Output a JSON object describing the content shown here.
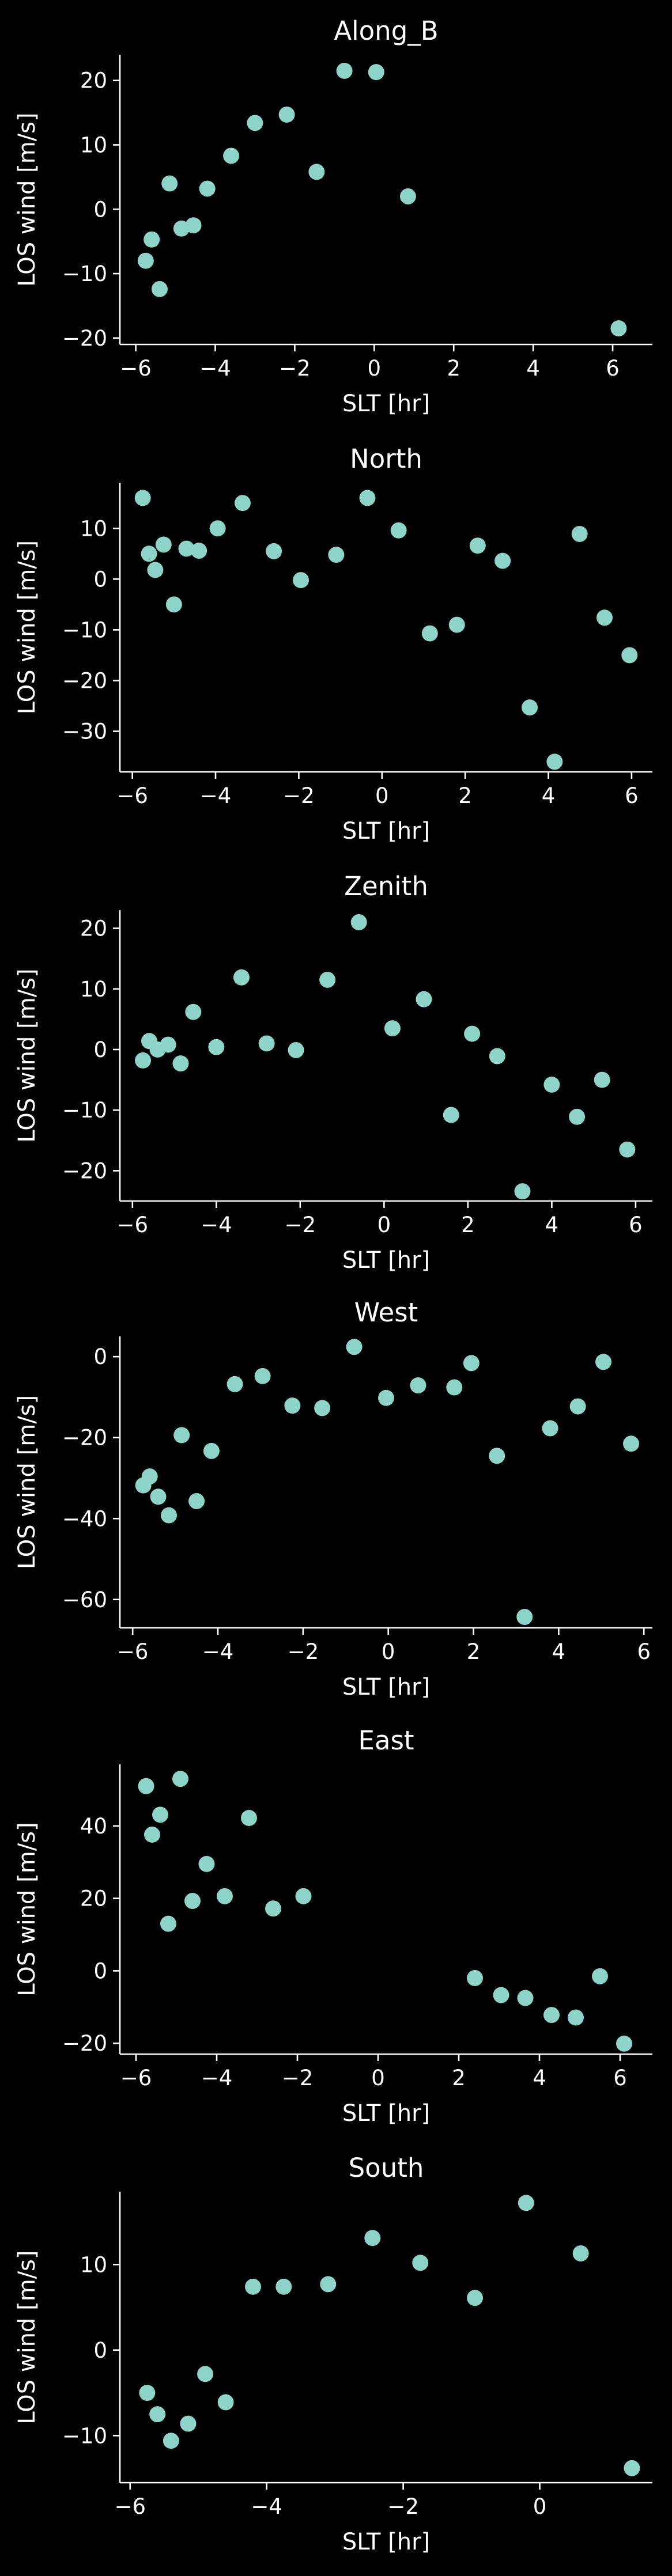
{
  "figure": {
    "background": "#000000",
    "foreground": "#ffffff",
    "marker_color": "#8dd3c7"
  },
  "chart_data": [
    {
      "type": "scatter",
      "title": "Along_B",
      "xlabel": "SLT [hr]",
      "ylabel": "LOS wind [m/s]",
      "xlim": [
        -6.4,
        7.0
      ],
      "ylim": [
        -21,
        24
      ],
      "xticks": [
        -6,
        -4,
        -2,
        0,
        2,
        4,
        6
      ],
      "yticks": [
        -20,
        -10,
        0,
        10,
        20
      ],
      "grid": false,
      "points": [
        {
          "x": -5.75,
          "y": -8.0
        },
        {
          "x": -5.6,
          "y": -4.7
        },
        {
          "x": -5.4,
          "y": -12.4
        },
        {
          "x": -5.15,
          "y": 4.0
        },
        {
          "x": -4.85,
          "y": -3.0
        },
        {
          "x": -4.55,
          "y": -2.5
        },
        {
          "x": -4.2,
          "y": 3.2
        },
        {
          "x": -3.6,
          "y": 8.3
        },
        {
          "x": -3.0,
          "y": 13.4
        },
        {
          "x": -2.2,
          "y": 14.7
        },
        {
          "x": -1.45,
          "y": 5.8
        },
        {
          "x": -0.75,
          "y": 21.5
        },
        {
          "x": 0.05,
          "y": 21.3
        },
        {
          "x": 0.85,
          "y": 2.0
        },
        {
          "x": 6.15,
          "y": -18.5
        }
      ]
    },
    {
      "type": "scatter",
      "title": "North",
      "xlabel": "SLT [hr]",
      "ylabel": "LOS wind [m/s]",
      "xlim": [
        -6.3,
        6.5
      ],
      "ylim": [
        -38,
        19
      ],
      "xticks": [
        -6,
        -4,
        -2,
        0,
        2,
        4,
        6
      ],
      "yticks": [
        -30,
        -20,
        -10,
        0,
        10
      ],
      "grid": false,
      "points": [
        {
          "x": -5.75,
          "y": 16.0
        },
        {
          "x": -5.6,
          "y": 5.0
        },
        {
          "x": -5.45,
          "y": 1.8
        },
        {
          "x": -5.25,
          "y": 6.8
        },
        {
          "x": -5.0,
          "y": -5.0
        },
        {
          "x": -4.7,
          "y": 6.0
        },
        {
          "x": -4.4,
          "y": 5.6
        },
        {
          "x": -3.95,
          "y": 10.0
        },
        {
          "x": -3.35,
          "y": 15.0
        },
        {
          "x": -2.6,
          "y": 5.5
        },
        {
          "x": -1.95,
          "y": -0.2
        },
        {
          "x": -1.1,
          "y": 4.8
        },
        {
          "x": -0.35,
          "y": 16.0
        },
        {
          "x": 0.4,
          "y": 9.6
        },
        {
          "x": 1.15,
          "y": -10.7
        },
        {
          "x": 1.8,
          "y": -9.0
        },
        {
          "x": 2.3,
          "y": 6.6
        },
        {
          "x": 2.9,
          "y": 3.6
        },
        {
          "x": 3.55,
          "y": -25.3
        },
        {
          "x": 4.15,
          "y": -36.0
        },
        {
          "x": 4.75,
          "y": 8.9
        },
        {
          "x": 5.35,
          "y": -7.6
        },
        {
          "x": 5.95,
          "y": -15.0
        }
      ]
    },
    {
      "type": "scatter",
      "title": "Zenith",
      "xlabel": "SLT [hr]",
      "ylabel": "LOS wind [m/s]",
      "xlim": [
        -6.3,
        6.4
      ],
      "ylim": [
        -25,
        23
      ],
      "xticks": [
        -6,
        -4,
        -2,
        0,
        2,
        4,
        6
      ],
      "yticks": [
        -20,
        -10,
        0,
        10,
        20
      ],
      "grid": false,
      "points": [
        {
          "x": -5.75,
          "y": -1.8
        },
        {
          "x": -5.6,
          "y": 1.4
        },
        {
          "x": -5.4,
          "y": 0.0
        },
        {
          "x": -5.15,
          "y": 0.8
        },
        {
          "x": -4.85,
          "y": -2.3
        },
        {
          "x": -4.55,
          "y": 6.2
        },
        {
          "x": -4.0,
          "y": 0.4
        },
        {
          "x": -3.4,
          "y": 11.9
        },
        {
          "x": -2.8,
          "y": 1.0
        },
        {
          "x": -2.1,
          "y": -0.1
        },
        {
          "x": -1.35,
          "y": 11.5
        },
        {
          "x": -0.6,
          "y": 21.0
        },
        {
          "x": 0.2,
          "y": 3.5
        },
        {
          "x": 0.95,
          "y": 8.3
        },
        {
          "x": 1.6,
          "y": -10.8
        },
        {
          "x": 2.1,
          "y": 2.6
        },
        {
          "x": 2.7,
          "y": -1.1
        },
        {
          "x": 3.3,
          "y": -23.4
        },
        {
          "x": 4.0,
          "y": -5.8
        },
        {
          "x": 4.6,
          "y": -11.1
        },
        {
          "x": 5.2,
          "y": -5.0
        },
        {
          "x": 5.8,
          "y": -16.5
        }
      ]
    },
    {
      "type": "scatter",
      "title": "West",
      "xlabel": "SLT [hr]",
      "ylabel": "LOS wind [m/s]",
      "xlim": [
        -6.3,
        6.2
      ],
      "ylim": [
        -67,
        5
      ],
      "xticks": [
        -6,
        -4,
        -2,
        0,
        2,
        4,
        6
      ],
      "yticks": [
        -60,
        -40,
        -20,
        0
      ],
      "grid": false,
      "points": [
        {
          "x": -5.75,
          "y": -31.8
        },
        {
          "x": -5.6,
          "y": -29.6
        },
        {
          "x": -5.4,
          "y": -34.6
        },
        {
          "x": -5.15,
          "y": -39.2
        },
        {
          "x": -4.85,
          "y": -19.4
        },
        {
          "x": -4.5,
          "y": -35.7
        },
        {
          "x": -4.15,
          "y": -23.3
        },
        {
          "x": -3.6,
          "y": -6.8
        },
        {
          "x": -2.95,
          "y": -4.8
        },
        {
          "x": -2.25,
          "y": -12.1
        },
        {
          "x": -1.55,
          "y": -12.7
        },
        {
          "x": -0.8,
          "y": 2.4
        },
        {
          "x": -0.05,
          "y": -10.2
        },
        {
          "x": 0.7,
          "y": -7.1
        },
        {
          "x": 1.55,
          "y": -7.6
        },
        {
          "x": 1.95,
          "y": -1.6
        },
        {
          "x": 2.55,
          "y": -24.5
        },
        {
          "x": 3.2,
          "y": -64.3
        },
        {
          "x": 3.8,
          "y": -17.7
        },
        {
          "x": 4.45,
          "y": -12.3
        },
        {
          "x": 5.05,
          "y": -1.3
        },
        {
          "x": 5.7,
          "y": -21.5
        }
      ]
    },
    {
      "type": "scatter",
      "title": "East",
      "xlabel": "SLT [hr]",
      "ylabel": "LOS wind [m/s]",
      "xlim": [
        -6.4,
        6.8
      ],
      "ylim": [
        -23,
        57
      ],
      "xticks": [
        -6,
        -4,
        -2,
        0,
        2,
        4,
        6
      ],
      "yticks": [
        -20,
        0,
        20,
        40
      ],
      "grid": false,
      "points": [
        {
          "x": -5.75,
          "y": 51.0
        },
        {
          "x": -5.6,
          "y": 37.6
        },
        {
          "x": -5.4,
          "y": 43.1
        },
        {
          "x": -5.2,
          "y": 13.0
        },
        {
          "x": -4.9,
          "y": 53.0
        },
        {
          "x": -4.6,
          "y": 19.3
        },
        {
          "x": -4.25,
          "y": 29.5
        },
        {
          "x": -3.8,
          "y": 20.6
        },
        {
          "x": -3.2,
          "y": 42.2
        },
        {
          "x": -2.6,
          "y": 17.2
        },
        {
          "x": -1.85,
          "y": 20.6
        },
        {
          "x": 2.4,
          "y": -2.0
        },
        {
          "x": 3.05,
          "y": -6.7
        },
        {
          "x": 3.65,
          "y": -7.5
        },
        {
          "x": 4.3,
          "y": -12.2
        },
        {
          "x": 4.9,
          "y": -12.9
        },
        {
          "x": 5.5,
          "y": -1.5
        },
        {
          "x": 6.1,
          "y": -20.1
        }
      ]
    },
    {
      "type": "scatter",
      "title": "South",
      "xlabel": "SLT [hr]",
      "ylabel": "LOS wind [m/s]",
      "xlim": [
        -6.15,
        1.65
      ],
      "ylim": [
        -15.5,
        18.5
      ],
      "xticks": [
        -6,
        -4,
        -2,
        0
      ],
      "yticks": [
        -10,
        0,
        10
      ],
      "grid": false,
      "points": [
        {
          "x": -5.75,
          "y": -5.0
        },
        {
          "x": -5.6,
          "y": -7.5
        },
        {
          "x": -5.4,
          "y": -10.6
        },
        {
          "x": -5.15,
          "y": -8.6
        },
        {
          "x": -4.9,
          "y": -2.8
        },
        {
          "x": -4.6,
          "y": -6.1
        },
        {
          "x": -4.2,
          "y": 7.4
        },
        {
          "x": -3.75,
          "y": 7.4
        },
        {
          "x": -3.1,
          "y": 7.7
        },
        {
          "x": -2.45,
          "y": 13.1
        },
        {
          "x": -1.75,
          "y": 10.2
        },
        {
          "x": -0.95,
          "y": 6.1
        },
        {
          "x": -0.2,
          "y": 17.2
        },
        {
          "x": 0.6,
          "y": 11.3
        },
        {
          "x": 1.35,
          "y": -13.8
        }
      ]
    }
  ]
}
